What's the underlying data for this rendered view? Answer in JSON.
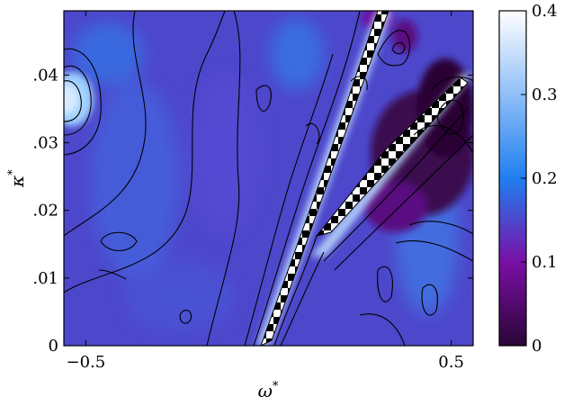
{
  "chart_data": {
    "type": "heatmap",
    "title": "",
    "xlabel": "ω",
    "xlabel_superscript": "*",
    "ylabel": "κ",
    "ylabel_superscript": "*",
    "xlim": [
      -0.56,
      0.56
    ],
    "ylim": [
      0,
      0.0495
    ],
    "x_ticks": [
      {
        "value": -0.5,
        "label": "−0.5"
      },
      {
        "value": 0.5,
        "label": "0.5"
      }
    ],
    "y_ticks": [
      {
        "value": 0,
        "label": "0"
      },
      {
        "value": 0.01,
        "label": ".01"
      },
      {
        "value": 0.02,
        "label": ".02"
      },
      {
        "value": 0.03,
        "label": ".03"
      },
      {
        "value": 0.04,
        "label": ".04"
      }
    ],
    "colorbar": {
      "range": [
        0,
        0.4
      ],
      "ticks": [
        {
          "value": 0,
          "label": "0"
        },
        {
          "value": 0.1,
          "label": "0.1"
        },
        {
          "value": 0.2,
          "label": "0.2"
        },
        {
          "value": 0.3,
          "label": "0.3"
        },
        {
          "value": 0.4,
          "label": "0.4"
        }
      ],
      "colors": [
        "#2a0536",
        "#7a0fa6",
        "#1f7ff0",
        "#ffffff"
      ]
    },
    "background_level": 0.2,
    "features": [
      {
        "kind": "masked-band",
        "from": [
          -0.02,
          0.0
        ],
        "to": [
          0.35,
          0.0495
        ],
        "width": 0.025
      },
      {
        "kind": "masked-band",
        "from": [
          0.16,
          0.02
        ],
        "to": [
          0.55,
          0.041
        ],
        "width": 0.018
      },
      {
        "kind": "low-value-region",
        "center": [
          0.43,
          0.03
        ],
        "radius": [
          0.12,
          0.012
        ],
        "level": 0.02
      },
      {
        "kind": "high-value-spot",
        "center": [
          -0.54,
          0.037
        ],
        "radius": [
          0.05,
          0.004
        ],
        "level": 0.32
      },
      {
        "kind": "low-value-spot",
        "center": [
          0.37,
          0.046
        ],
        "radius": [
          0.02,
          0.003
        ],
        "level": 0.03
      }
    ]
  }
}
